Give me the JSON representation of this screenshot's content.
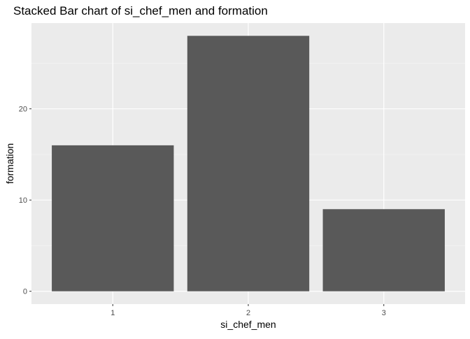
{
  "chart_data": {
    "type": "bar",
    "title": "Stacked Bar chart of si_chef_men and formation",
    "xlabel": "si_chef_men",
    "ylabel": "formation",
    "categories": [
      "1",
      "2",
      "3"
    ],
    "values": [
      16,
      28,
      9
    ],
    "ylim": [
      -1.4,
      29.4
    ],
    "yticks": [
      0,
      10,
      20
    ],
    "grid": true,
    "legend": "none",
    "colors": {
      "bar": "#595959",
      "panel": "#ebebeb",
      "grid_major": "#ffffff",
      "grid_minor": "#f5f5f5",
      "tick_label": "#4d4d4d",
      "tick_mark": "#333333",
      "axis_title": "#000000"
    }
  }
}
